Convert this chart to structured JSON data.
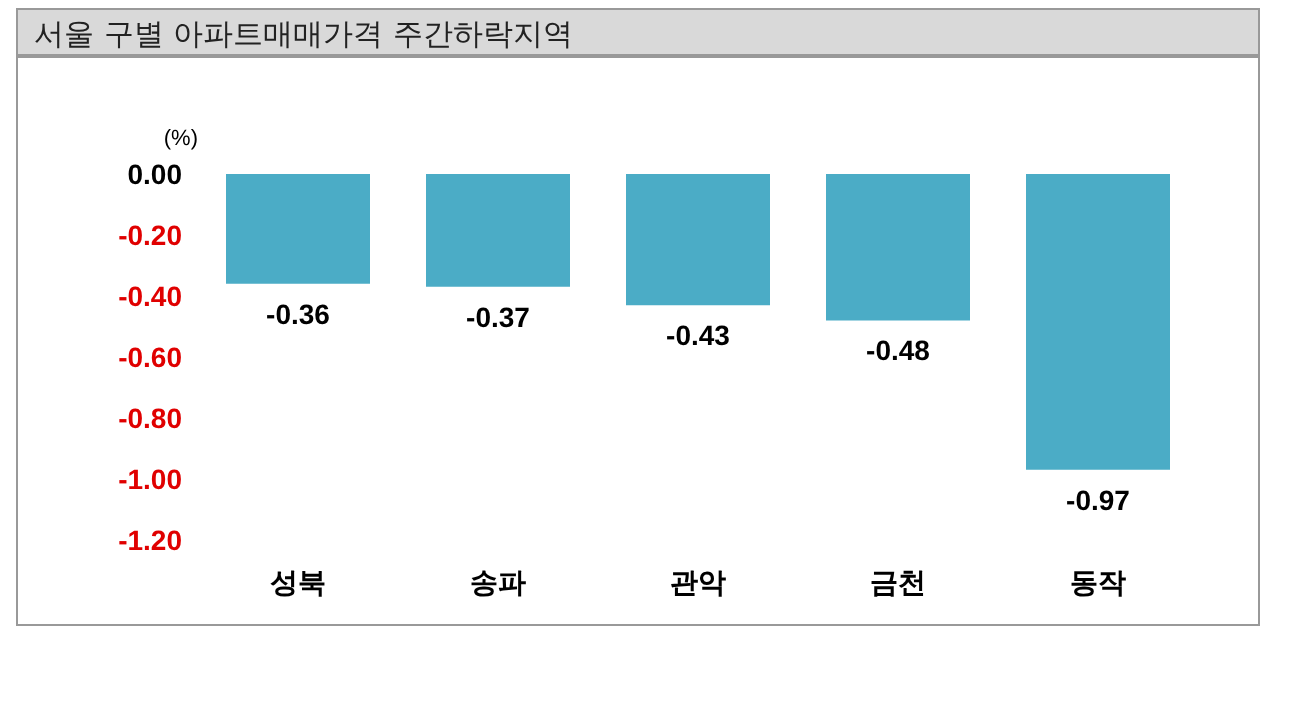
{
  "chart_data": {
    "type": "bar",
    "title": "서울 구별 아파트매매가격 주간하락지역",
    "ylabel": "(%)",
    "categories": [
      "성북",
      "송파",
      "관악",
      "금천",
      "동작"
    ],
    "values": [
      -0.36,
      -0.37,
      -0.43,
      -0.48,
      -0.97
    ],
    "color": "#4bacc6",
    "ylim": [
      -1.2,
      0
    ],
    "yticks": [
      {
        "value": 0,
        "label": "0.00"
      },
      {
        "value": -0.2,
        "label": "-0.20"
      },
      {
        "value": -0.4,
        "label": "-0.40"
      },
      {
        "value": -0.6,
        "label": "-0.60"
      },
      {
        "value": -0.8,
        "label": "-0.80"
      },
      {
        "value": -1,
        "label": "-1.00"
      },
      {
        "value": -1.2,
        "label": "-1.20"
      }
    ],
    "data_labels": true,
    "grid": false
  }
}
